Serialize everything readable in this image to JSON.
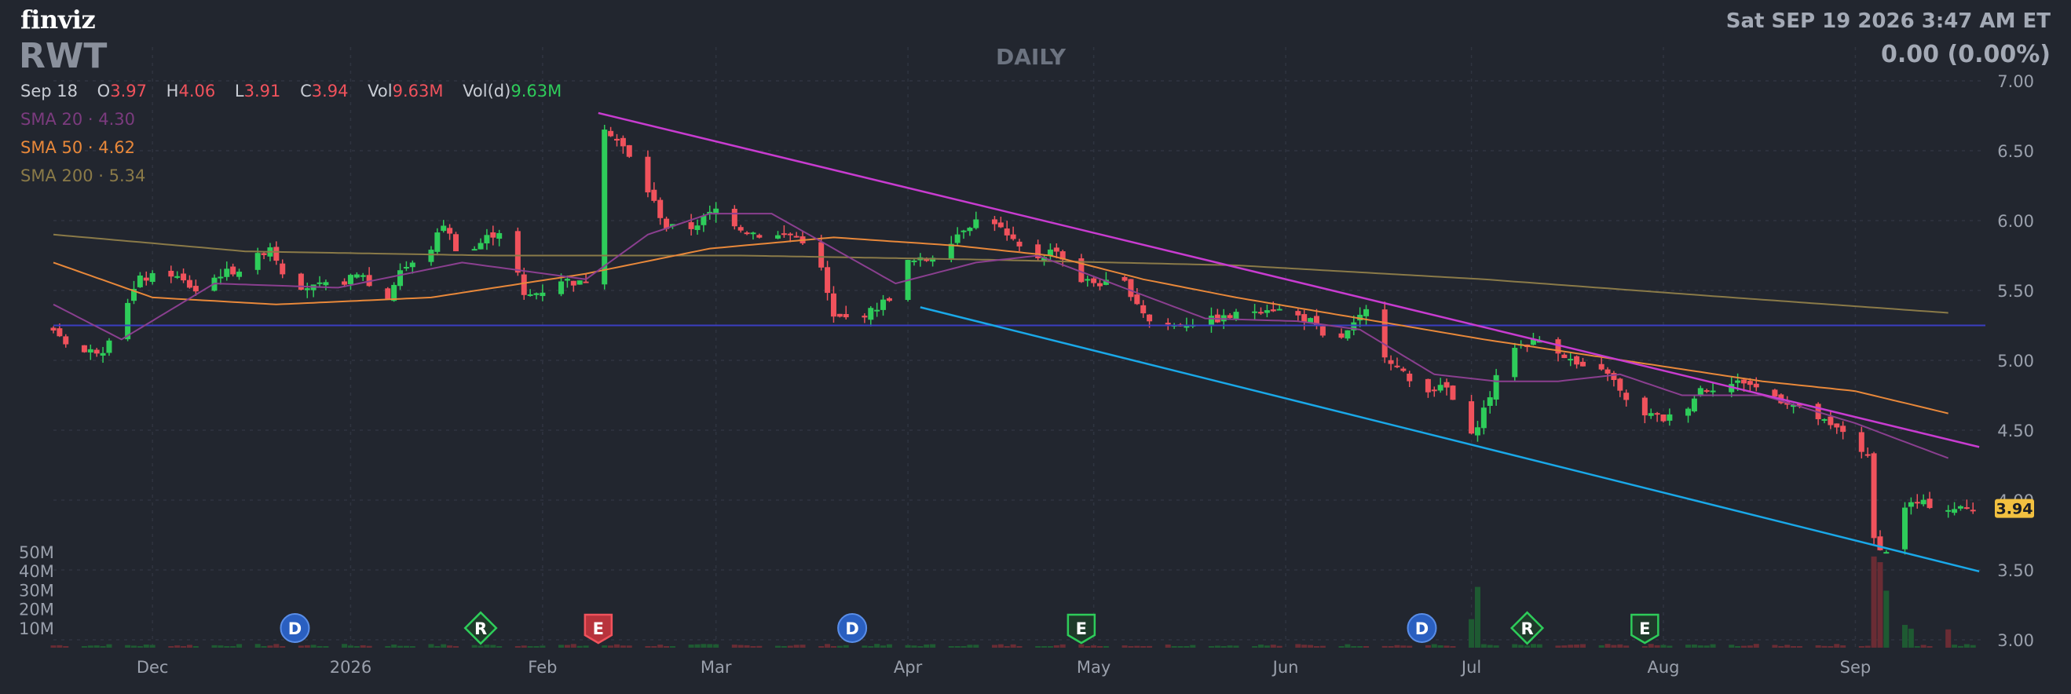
{
  "header": {
    "logo": "finviz",
    "ticker": "RWT",
    "timeframe": "DAILY",
    "datetime": "Sat SEP 19 2026 3:47 AM ET",
    "change": "0.00 (0.00%)"
  },
  "ohlc": {
    "date": "Sep 18",
    "o_label": "O",
    "o": "3.97",
    "h_label": "H",
    "h": "4.06",
    "l_label": "L",
    "l": "3.91",
    "c_label": "C",
    "c": "3.94",
    "vol_label": "Vol",
    "vol": "9.63M",
    "vold_label": "Vol(d)",
    "vold": "9.63M"
  },
  "indicators": {
    "sma20": {
      "label": "SMA 20",
      "value": "4.30"
    },
    "sma50": {
      "label": "SMA 50",
      "value": "4.62"
    },
    "sma200": {
      "label": "SMA 200",
      "value": "5.34"
    }
  },
  "colors": {
    "background": "#22262f",
    "up": "#2ecc5a",
    "down": "#f0525c",
    "sma20": "#8a3f8f",
    "sma50": "#e8883a",
    "sma200": "#8a7a48",
    "trendline_upper": "#c83cd0",
    "trendline_lower": "#1aa8e8",
    "hline": "#3b3ec0",
    "last_price_tag": "#f2c040"
  },
  "chart_data": {
    "type": "candlestick",
    "y_axis_ticks": [
      "7.00",
      "6.50",
      "6.00",
      "5.50",
      "5.00",
      "4.50",
      "4.00",
      "3.50",
      "3.00"
    ],
    "ylim": [
      3.0,
      7.0
    ],
    "volume_axis_ticks": [
      "50M",
      "40M",
      "30M",
      "20M",
      "10M"
    ],
    "x_axis_ticks": [
      {
        "label": "Dec",
        "day": 25
      },
      {
        "label": "2026",
        "day": 57
      },
      {
        "label": "Feb",
        "day": 88
      },
      {
        "label": "Mar",
        "day": 116
      },
      {
        "label": "Apr",
        "day": 147
      },
      {
        "label": "May",
        "day": 177
      },
      {
        "label": "Jun",
        "day": 208
      },
      {
        "label": "Jul",
        "day": 238
      },
      {
        "label": "Aug",
        "day": 269
      },
      {
        "label": "Sep",
        "day": 300
      }
    ],
    "x_range_days": [
      9,
      321
    ],
    "last_price": "3.94",
    "hline_price": 5.25,
    "trendline_upper": {
      "start": {
        "day": 97,
        "price": 6.77
      },
      "end": {
        "day": 320,
        "price": 4.38
      }
    },
    "trendline_lower": {
      "start": {
        "day": 149,
        "price": 5.38
      },
      "end": {
        "day": 320,
        "price": 3.49
      }
    },
    "events": [
      {
        "type": "D",
        "day": 48
      },
      {
        "type": "R",
        "day": 78
      },
      {
        "type": "E",
        "day": 97
      },
      {
        "type": "D",
        "day": 138
      },
      {
        "type": "E",
        "day": 175
      },
      {
        "type": "D",
        "day": 230
      },
      {
        "type": "R",
        "day": 247
      },
      {
        "type": "E",
        "day": 266
      }
    ],
    "price_keypoints": [
      [
        9,
        5.22
      ],
      [
        13,
        5.05
      ],
      [
        17,
        5.08
      ],
      [
        20,
        5.35
      ],
      [
        23,
        5.58
      ],
      [
        28,
        5.62
      ],
      [
        32,
        5.5
      ],
      [
        36,
        5.62
      ],
      [
        40,
        5.66
      ],
      [
        44,
        5.82
      ],
      [
        47,
        5.55
      ],
      [
        51,
        5.52
      ],
      [
        55,
        5.55
      ],
      [
        59,
        5.62
      ],
      [
        62,
        5.35
      ],
      [
        65,
        5.65
      ],
      [
        69,
        5.72
      ],
      [
        72,
        5.98
      ],
      [
        75,
        5.72
      ],
      [
        79,
        5.88
      ],
      [
        82,
        5.95
      ],
      [
        85,
        5.45
      ],
      [
        88,
        5.5
      ],
      [
        91,
        5.58
      ],
      [
        94,
        5.55
      ],
      [
        97,
        5.62
      ],
      [
        98,
        6.68
      ],
      [
        101,
        6.52
      ],
      [
        104,
        6.3
      ],
      [
        108,
        5.95
      ],
      [
        112,
        5.95
      ],
      [
        116,
        6.08
      ],
      [
        120,
        5.95
      ],
      [
        124,
        5.88
      ],
      [
        128,
        5.9
      ],
      [
        132,
        5.82
      ],
      [
        135,
        5.3
      ],
      [
        138,
        5.3
      ],
      [
        141,
        5.35
      ],
      [
        144,
        5.45
      ],
      [
        147,
        5.7
      ],
      [
        150,
        5.72
      ],
      [
        153,
        5.82
      ],
      [
        156,
        5.95
      ],
      [
        160,
        6.05
      ],
      [
        163,
        5.88
      ],
      [
        167,
        5.72
      ],
      [
        171,
        5.8
      ],
      [
        174,
        5.58
      ],
      [
        178,
        5.55
      ],
      [
        182,
        5.55
      ],
      [
        186,
        5.28
      ],
      [
        190,
        5.25
      ],
      [
        194,
        5.28
      ],
      [
        198,
        5.3
      ],
      [
        202,
        5.35
      ],
      [
        205,
        5.38
      ],
      [
        208,
        5.35
      ],
      [
        212,
        5.28
      ],
      [
        215,
        5.1
      ],
      [
        218,
        5.2
      ],
      [
        221,
        5.35
      ],
      [
        224,
        5.05
      ],
      [
        228,
        4.85
      ],
      [
        231,
        4.8
      ],
      [
        234,
        4.8
      ],
      [
        238,
        4.45
      ],
      [
        241,
        4.75
      ],
      [
        244,
        5.1
      ],
      [
        247,
        5.12
      ],
      [
        250,
        5.15
      ],
      [
        254,
        5.0
      ],
      [
        257,
        4.9
      ],
      [
        260,
        4.92
      ],
      [
        263,
        4.7
      ],
      [
        266,
        4.62
      ],
      [
        269,
        4.58
      ],
      [
        272,
        4.62
      ],
      [
        275,
        4.8
      ],
      [
        279,
        4.82
      ],
      [
        282,
        4.85
      ],
      [
        285,
        4.78
      ],
      [
        289,
        4.7
      ],
      [
        293,
        4.62
      ],
      [
        296,
        4.52
      ],
      [
        299,
        4.48
      ],
      [
        302,
        4.3
      ],
      [
        303,
        3.72
      ],
      [
        305,
        3.62
      ],
      [
        307,
        3.95
      ],
      [
        310,
        3.98
      ],
      [
        313,
        3.96
      ],
      [
        315,
        3.94
      ]
    ],
    "sma20_points": [
      [
        9,
        5.4
      ],
      [
        20,
        5.15
      ],
      [
        35,
        5.55
      ],
      [
        55,
        5.52
      ],
      [
        75,
        5.7
      ],
      [
        95,
        5.58
      ],
      [
        105,
        5.9
      ],
      [
        115,
        6.05
      ],
      [
        125,
        6.05
      ],
      [
        135,
        5.8
      ],
      [
        145,
        5.55
      ],
      [
        158,
        5.7
      ],
      [
        168,
        5.75
      ],
      [
        180,
        5.55
      ],
      [
        195,
        5.3
      ],
      [
        210,
        5.28
      ],
      [
        220,
        5.22
      ],
      [
        232,
        4.9
      ],
      [
        242,
        4.85
      ],
      [
        252,
        4.85
      ],
      [
        262,
        4.9
      ],
      [
        272,
        4.75
      ],
      [
        285,
        4.75
      ],
      [
        300,
        4.55
      ],
      [
        315,
        4.3
      ]
    ],
    "sma50_points": [
      [
        9,
        5.7
      ],
      [
        25,
        5.45
      ],
      [
        45,
        5.4
      ],
      [
        70,
        5.45
      ],
      [
        95,
        5.62
      ],
      [
        115,
        5.8
      ],
      [
        135,
        5.88
      ],
      [
        155,
        5.82
      ],
      [
        170,
        5.75
      ],
      [
        185,
        5.58
      ],
      [
        200,
        5.45
      ],
      [
        220,
        5.3
      ],
      [
        240,
        5.15
      ],
      [
        255,
        5.05
      ],
      [
        270,
        4.95
      ],
      [
        285,
        4.85
      ],
      [
        300,
        4.78
      ],
      [
        315,
        4.62
      ]
    ],
    "sma200_points": [
      [
        9,
        5.9
      ],
      [
        40,
        5.78
      ],
      [
        80,
        5.75
      ],
      [
        120,
        5.75
      ],
      [
        160,
        5.72
      ],
      [
        200,
        5.68
      ],
      [
        240,
        5.58
      ],
      [
        280,
        5.45
      ],
      [
        315,
        5.34
      ]
    ],
    "volume_spikes": [
      [
        239,
        32
      ],
      [
        238,
        15
      ],
      [
        303,
        48
      ],
      [
        304,
        45
      ],
      [
        305,
        30
      ],
      [
        306,
        20
      ],
      [
        307,
        16
      ],
      [
        308,
        12
      ],
      [
        309,
        10
      ],
      [
        315,
        9.63
      ]
    ]
  }
}
